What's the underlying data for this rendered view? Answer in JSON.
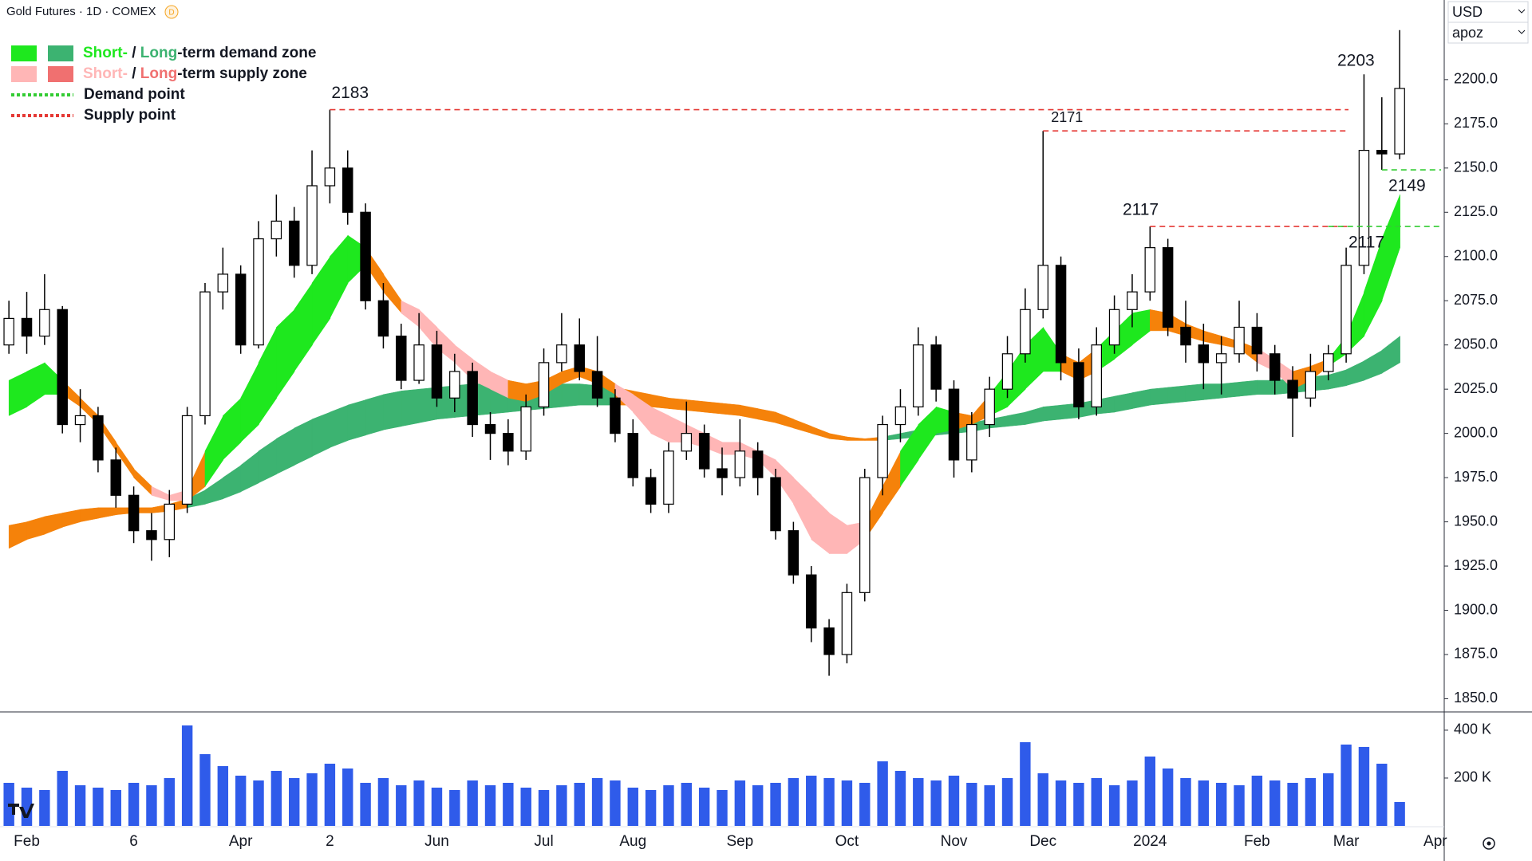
{
  "chart_data": {
    "type": "candlestick",
    "title": "Gold Futures · 1D · COMEX",
    "badge": "D",
    "currency": "USD",
    "profile": "apoz",
    "categories": [
      null,
      "Feb",
      null,
      null,
      null,
      null,
      null,
      "6",
      null,
      null,
      null,
      null,
      null,
      "Apr",
      null,
      null,
      null,
      null,
      "2",
      null,
      null,
      null,
      null,
      null,
      "Jun",
      null,
      null,
      null,
      null,
      null,
      "Jul",
      null,
      null,
      null,
      null,
      "Aug",
      null,
      null,
      null,
      null,
      null,
      "Sep",
      null,
      null,
      null,
      null,
      null,
      "Oct",
      null,
      null,
      null,
      null,
      null,
      "Nov",
      null,
      null,
      null,
      null,
      "Dec",
      null,
      null,
      null,
      null,
      null,
      "2024",
      null,
      null,
      null,
      null,
      null,
      "Feb",
      null,
      null,
      null,
      null,
      "Mar",
      null,
      null,
      null,
      null,
      "Apr"
    ],
    "open": [
      2050,
      2065,
      2055,
      2070,
      2005,
      2010,
      1985,
      1965,
      1945,
      1940,
      1960,
      2010,
      2080,
      2090,
      2050,
      2110,
      2120,
      2095,
      2140,
      2150,
      2125,
      2075,
      2055,
      2030,
      2050,
      2020,
      2035,
      2005,
      2000,
      1990,
      2015,
      2040,
      2050,
      2035,
      2020,
      2000,
      1975,
      1960,
      1990,
      2000,
      1980,
      1975,
      1990,
      1975,
      1945,
      1920,
      1890,
      1875,
      1910,
      1975,
      2005,
      2015,
      2050,
      2025,
      1985,
      2005,
      2025,
      2045,
      2070,
      2095,
      2040,
      2015,
      2050,
      2070,
      2080,
      2105,
      2060,
      2050,
      2040,
      2045,
      2060,
      2045,
      2030,
      2020,
      2035,
      2045,
      2095,
      2160,
      2158,
      null,
      null
    ],
    "high": [
      2075,
      2080,
      2090,
      2072,
      2025,
      2015,
      1992,
      1970,
      1955,
      1968,
      2015,
      2085,
      2105,
      2095,
      2120,
      2135,
      2128,
      2160,
      2183,
      2160,
      2130,
      2085,
      2062,
      2068,
      2058,
      2045,
      2040,
      2012,
      2008,
      2022,
      2048,
      2068,
      2065,
      2055,
      2025,
      2008,
      1980,
      1995,
      2018,
      2005,
      1992,
      2008,
      1995,
      1980,
      1950,
      1925,
      1895,
      1915,
      1980,
      2010,
      2025,
      2060,
      2055,
      2030,
      2012,
      2032,
      2055,
      2082,
      2171,
      2100,
      2048,
      2060,
      2078,
      2090,
      2117,
      2110,
      2075,
      2062,
      2055,
      2075,
      2068,
      2050,
      2038,
      2045,
      2050,
      2105,
      2203,
      2190,
      2228,
      null,
      null
    ],
    "low": [
      2045,
      2045,
      2050,
      2000,
      1995,
      1978,
      1958,
      1938,
      1928,
      1930,
      1955,
      2005,
      2070,
      2045,
      2048,
      2100,
      2088,
      2090,
      2130,
      2118,
      2070,
      2048,
      2025,
      2028,
      2015,
      2012,
      1998,
      1985,
      1982,
      1985,
      2010,
      2035,
      2030,
      2015,
      1995,
      1970,
      1955,
      1955,
      1985,
      1975,
      1965,
      1970,
      1965,
      1940,
      1915,
      1882,
      1863,
      1870,
      1905,
      1965,
      1995,
      2010,
      2018,
      1975,
      1978,
      1998,
      2020,
      2040,
      2065,
      2030,
      2008,
      2010,
      2045,
      2060,
      2075,
      2055,
      2040,
      2025,
      2022,
      2040,
      2035,
      2022,
      1998,
      2015,
      2030,
      2040,
      2090,
      2149,
      2155,
      null,
      null
    ],
    "close": [
      2065,
      2055,
      2070,
      2005,
      2010,
      1985,
      1965,
      1945,
      1940,
      1960,
      2010,
      2080,
      2090,
      2050,
      2110,
      2120,
      2095,
      2140,
      2150,
      2125,
      2075,
      2055,
      2030,
      2050,
      2020,
      2035,
      2005,
      2000,
      1990,
      2015,
      2040,
      2050,
      2035,
      2020,
      2000,
      1975,
      1960,
      1990,
      2000,
      1980,
      1975,
      1990,
      1975,
      1945,
      1920,
      1890,
      1875,
      1910,
      1975,
      2005,
      2015,
      2050,
      2025,
      1985,
      2005,
      2025,
      2045,
      2070,
      2095,
      2040,
      2015,
      2050,
      2070,
      2080,
      2105,
      2060,
      2050,
      2040,
      2045,
      2060,
      2045,
      2030,
      2020,
      2035,
      2045,
      2095,
      2160,
      2158,
      2195,
      null,
      null
    ],
    "up_color": "#ffffff",
    "down_color": "#000000",
    "short_zone": {
      "upper": [
        2030,
        2035,
        2040,
        2030,
        2020,
        2010,
        1995,
        1980,
        1970,
        1965,
        1968,
        1990,
        2010,
        2020,
        2040,
        2060,
        2070,
        2085,
        2100,
        2112,
        2105,
        2090,
        2075,
        2070,
        2060,
        2050,
        2042,
        2035,
        2030,
        2028,
        2030,
        2035,
        2038,
        2035,
        2028,
        2022,
        2015,
        2010,
        2005,
        2000,
        1995,
        1995,
        1990,
        1985,
        1975,
        1965,
        1955,
        1948,
        1950,
        1970,
        1990,
        2005,
        2015,
        2012,
        2010,
        2022,
        2035,
        2050,
        2060,
        2045,
        2040,
        2048,
        2058,
        2068,
        2070,
        2068,
        2062,
        2058,
        2055,
        2052,
        2048,
        2042,
        2035,
        2038,
        2042,
        2055,
        2080,
        2110,
        2135,
        null,
        null
      ],
      "lower": [
        2010,
        2015,
        2022,
        2022,
        2015,
        2005,
        1990,
        1975,
        1965,
        1962,
        1962,
        1970,
        1985,
        1995,
        2005,
        2020,
        2035,
        2050,
        2065,
        2085,
        2095,
        2080,
        2068,
        2060,
        2048,
        2040,
        2030,
        2025,
        2020,
        2018,
        2022,
        2028,
        2032,
        2028,
        2022,
        2012,
        2000,
        1995,
        1995,
        1992,
        1988,
        1988,
        1985,
        1975,
        1960,
        1940,
        1932,
        1932,
        1940,
        1955,
        1970,
        1985,
        2000,
        2002,
        2005,
        2010,
        2015,
        2025,
        2035,
        2035,
        2030,
        2035,
        2042,
        2050,
        2058,
        2058,
        2055,
        2052,
        2050,
        2048,
        2040,
        2035,
        2025,
        2030,
        2038,
        2045,
        2055,
        2075,
        2105,
        null,
        null
      ],
      "colors": [
        "#1ee81e",
        "#1ee81e",
        "#1ee81e",
        "#f5820a",
        "#f5820a",
        "#f5820a",
        "#f5820a",
        "#f5820a",
        "#ffb6b6",
        "#ffb6b6",
        "#f5820a",
        "#1ee81e",
        "#1ee81e",
        "#1ee81e",
        "#1ee81e",
        "#1ee81e",
        "#1ee81e",
        "#1ee81e",
        "#1ee81e",
        "#1ee81e",
        "#f5820a",
        "#f5820a",
        "#ffb6b6",
        "#ffb6b6",
        "#ffb6b6",
        "#ffb6b6",
        "#ffb6b6",
        "#ffb6b6",
        "#f5820a",
        "#f5820a",
        "#f5820a",
        "#f5820a",
        "#f5820a",
        "#f5820a",
        "#ffb6b6",
        "#ffb6b6",
        "#ffb6b6",
        "#ffb6b6",
        "#ffb6b6",
        "#ffb6b6",
        "#ffb6b6",
        "#ffb6b6",
        "#ffb6b6",
        "#ffb6b6",
        "#ffb6b6",
        "#ffb6b6",
        "#ffb6b6",
        "#ffb6b6",
        "#f5820a",
        "#f5820a",
        "#1ee81e",
        "#1ee81e",
        "#1ee81e",
        "#f5820a",
        "#f5820a",
        "#1ee81e",
        "#1ee81e",
        "#1ee81e",
        "#1ee81e",
        "#f5820a",
        "#f5820a",
        "#1ee81e",
        "#1ee81e",
        "#1ee81e",
        "#f5820a",
        "#f5820a",
        "#f5820a",
        "#f5820a",
        "#f5820a",
        "#f5820a",
        "#ffb6b6",
        "#ffb6b6",
        "#f5820a",
        "#f5820a",
        "#1ee81e",
        "#1ee81e",
        "#1ee81e",
        "#1ee81e",
        "#1ee81e",
        null,
        null
      ]
    },
    "long_zone": {
      "upper": [
        1948,
        1950,
        1953,
        1955,
        1957,
        1958,
        1958,
        1958,
        1958,
        1960,
        1963,
        1968,
        1975,
        1982,
        1990,
        1997,
        2003,
        2008,
        2012,
        2016,
        2019,
        2022,
        2024,
        2025,
        2026,
        2027,
        2028,
        2028,
        2028,
        2028,
        2028,
        2028,
        2028,
        2027,
        2026,
        2024,
        2022,
        2020,
        2019,
        2018,
        2017,
        2016,
        2014,
        2012,
        2008,
        2004,
        2000,
        1998,
        1997,
        1998,
        2000,
        2002,
        2004,
        2005,
        2006,
        2008,
        2010,
        2012,
        2015,
        2016,
        2017,
        2019,
        2021,
        2023,
        2025,
        2026,
        2027,
        2028,
        2028,
        2029,
        2030,
        2030,
        2031,
        2032,
        2033,
        2036,
        2041,
        2047,
        2055,
        null,
        null
      ],
      "lower": [
        1935,
        1940,
        1943,
        1947,
        1950,
        1952,
        1954,
        1955,
        1955,
        1956,
        1958,
        1960,
        1963,
        1967,
        1972,
        1977,
        1982,
        1987,
        1992,
        1996,
        1999,
        2002,
        2004,
        2006,
        2008,
        2009,
        2010,
        2011,
        2012,
        2013,
        2014,
        2015,
        2016,
        2016,
        2016,
        2016,
        2015,
        2014,
        2013,
        2012,
        2011,
        2010,
        2008,
        2006,
        2003,
        2000,
        1997,
        1996,
        1996,
        1996,
        1997,
        1998,
        1999,
        2000,
        2001,
        2003,
        2004,
        2005,
        2007,
        2008,
        2009,
        2011,
        2012,
        2014,
        2016,
        2017,
        2018,
        2019,
        2020,
        2021,
        2022,
        2022,
        2023,
        2024,
        2025,
        2027,
        2030,
        2034,
        2040,
        null,
        null
      ],
      "colors": [
        "#f5820a",
        "#f5820a",
        "#f5820a",
        "#f5820a",
        "#f5820a",
        "#f5820a",
        "#f5820a",
        "#f5820a",
        "#f5820a",
        "#f5820a",
        "#3cb371",
        "#3cb371",
        "#3cb371",
        "#3cb371",
        "#3cb371",
        "#3cb371",
        "#3cb371",
        "#3cb371",
        "#3cb371",
        "#3cb371",
        "#3cb371",
        "#3cb371",
        "#3cb371",
        "#3cb371",
        "#3cb371",
        "#3cb371",
        "#3cb371",
        "#3cb371",
        "#3cb371",
        "#3cb371",
        "#3cb371",
        "#3cb371",
        "#3cb371",
        "#3cb371",
        "#f5820a",
        "#f5820a",
        "#f5820a",
        "#f5820a",
        "#f5820a",
        "#f5820a",
        "#f5820a",
        "#f5820a",
        "#f5820a",
        "#f5820a",
        "#f5820a",
        "#f5820a",
        "#f5820a",
        "#f5820a",
        "#f5820a",
        "#3cb371",
        "#3cb371",
        "#3cb371",
        "#3cb371",
        "#3cb371",
        "#3cb371",
        "#3cb371",
        "#3cb371",
        "#3cb371",
        "#3cb371",
        "#3cb371",
        "#3cb371",
        "#3cb371",
        "#3cb371",
        "#3cb371",
        "#3cb371",
        "#3cb371",
        "#3cb371",
        "#3cb371",
        "#3cb371",
        "#3cb371",
        "#3cb371",
        "#3cb371",
        "#3cb371",
        "#3cb371",
        "#3cb371",
        "#3cb371",
        "#3cb371",
        "#3cb371",
        "#3cb371",
        null,
        null
      ]
    },
    "levels": [
      {
        "value": 2183,
        "color": "#e53935"
      },
      {
        "value": 2171,
        "color": "#e53935"
      },
      {
        "value": 2117,
        "color": "#e53935"
      },
      {
        "value": 2149,
        "color": "#33cc33"
      },
      {
        "value": 2117,
        "color": "#33cc33"
      }
    ],
    "annotations": [
      {
        "value": 2203
      }
    ],
    "ylim": [
      1843,
      2245
    ],
    "yticks": [
      {
        "value": 1850,
        "label": "1850.0"
      },
      {
        "value": 1875,
        "label": "1875.0"
      },
      {
        "value": 1900,
        "label": "1900.0"
      },
      {
        "value": 1925,
        "label": "1925.0"
      },
      {
        "value": 1950,
        "label": "1950.0"
      },
      {
        "value": 1975,
        "label": "1975.0"
      },
      {
        "value": 2000,
        "label": "2000.0"
      },
      {
        "value": 2025,
        "label": "2025.0"
      },
      {
        "value": 2050,
        "label": "2050.0"
      },
      {
        "value": 2075,
        "label": "2075.0"
      },
      {
        "value": 2100,
        "label": "2100.0"
      },
      {
        "value": 2125,
        "label": "2125.0"
      },
      {
        "value": 2150,
        "label": "2150.0"
      },
      {
        "value": 2175,
        "label": "2175.0"
      },
      {
        "value": 2200,
        "label": "2200.0"
      }
    ],
    "grid": false,
    "volume": {
      "values": [
        180000,
        160000,
        150000,
        230000,
        170000,
        160000,
        150000,
        180000,
        170000,
        200000,
        420000,
        300000,
        250000,
        210000,
        190000,
        230000,
        200000,
        220000,
        260000,
        240000,
        180000,
        200000,
        170000,
        190000,
        160000,
        150000,
        190000,
        170000,
        180000,
        160000,
        150000,
        170000,
        180000,
        200000,
        190000,
        160000,
        150000,
        170000,
        180000,
        160000,
        150000,
        190000,
        170000,
        180000,
        200000,
        210000,
        200000,
        190000,
        180000,
        270000,
        230000,
        200000,
        190000,
        210000,
        180000,
        170000,
        200000,
        350000,
        220000,
        190000,
        180000,
        200000,
        170000,
        190000,
        290000,
        240000,
        200000,
        190000,
        180000,
        170000,
        210000,
        190000,
        180000,
        200000,
        220000,
        340000,
        330000,
        260000,
        100000,
        null,
        null
      ],
      "color": "#2f5bea",
      "ylim": [
        0,
        473000
      ],
      "yticks": [
        {
          "value": 200000,
          "label": "200 K"
        },
        {
          "value": 400000,
          "label": "400 K"
        }
      ]
    },
    "legend": [
      {
        "parts": [
          {
            "text": "Short-",
            "color": "#1ee81e"
          },
          {
            "text": " / "
          },
          {
            "text": "Long",
            "color": "#3cb371"
          },
          {
            "text": "-term demand zone"
          }
        ],
        "swatches": [
          "#1ee81e",
          "#3cb371"
        ]
      },
      {
        "parts": [
          {
            "text": "Short-",
            "color": "#ffb6b6"
          },
          {
            "text": " / "
          },
          {
            "text": "Long",
            "color": "#f07070"
          },
          {
            "text": "-term supply zone"
          }
        ],
        "swatches": [
          "#ffb6b6",
          "#f07070"
        ]
      },
      {
        "parts": [
          {
            "text": "Demand point"
          }
        ],
        "dash": "#33cc33"
      },
      {
        "parts": [
          {
            "text": "Supply point"
          }
        ],
        "dash": "#e53935"
      }
    ]
  }
}
